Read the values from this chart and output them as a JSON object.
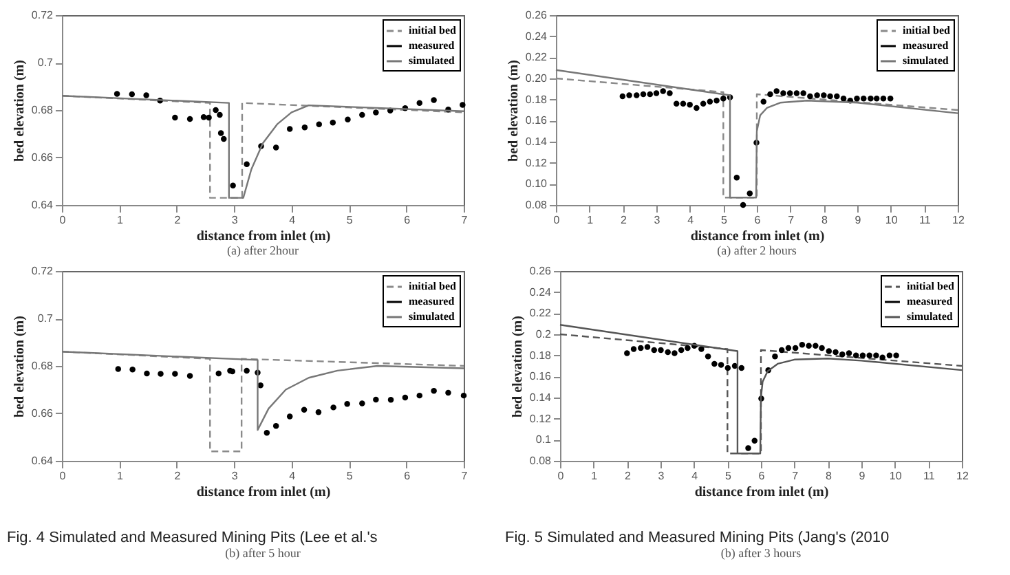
{
  "chart_data": [
    {
      "type": "line",
      "title": "(a) after 2hour",
      "xlabel": "distance from inlet (m)",
      "ylabel": "bed elevation (m)",
      "xlim": [
        0,
        7
      ],
      "ylim": [
        0.64,
        0.72
      ],
      "xticks": [
        0,
        1,
        2,
        3,
        4,
        5,
        6,
        7
      ],
      "yticks": [
        0.64,
        0.66,
        0.68,
        0.7,
        0.72
      ],
      "grid": false,
      "legend": "top right",
      "series": [
        {
          "name": "initial bed",
          "type": "line",
          "color": "#8a8a8a",
          "line_style": "dashed",
          "marker": "none",
          "x": [
            0,
            2.58,
            2.58,
            3.14,
            3.14,
            7
          ],
          "values": [
            0.686,
            0.683,
            0.643,
            0.643,
            0.683,
            0.679
          ]
        },
        {
          "name": "measured",
          "type": "scatter",
          "color": "#000000",
          "marker": "circle",
          "x": [
            0.96,
            1.22,
            1.47,
            1.71,
            1.97,
            2.23,
            2.47,
            2.56,
            2.68,
            2.75,
            2.77,
            2.82,
            2.98,
            3.22,
            3.47,
            3.73,
            3.97,
            4.23,
            4.48,
            4.72,
            4.98,
            5.23,
            5.47,
            5.72,
            5.98,
            6.23,
            6.48,
            6.73,
            6.98
          ],
          "values": [
            0.6868,
            0.6867,
            0.6862,
            0.684,
            0.6768,
            0.6762,
            0.677,
            0.6768,
            0.68,
            0.678,
            0.6703,
            0.6678,
            0.6482,
            0.6572,
            0.6648,
            0.6642,
            0.672,
            0.6727,
            0.674,
            0.6747,
            0.676,
            0.678,
            0.679,
            0.6798,
            0.6808,
            0.683,
            0.6842,
            0.6802,
            0.6822
          ]
        },
        {
          "name": "simulated",
          "type": "line",
          "color": "#777777",
          "line_style": "solid",
          "marker": "none",
          "x": [
            0,
            2.91,
            2.91,
            3.16,
            3.3,
            3.5,
            3.75,
            4.0,
            4.3,
            7
          ],
          "values": [
            0.686,
            0.683,
            0.643,
            0.643,
            0.655,
            0.666,
            0.674,
            0.679,
            0.682,
            0.6795
          ]
        }
      ]
    },
    {
      "type": "line",
      "title": "(a) after 2 hours",
      "xlabel": "distance from inlet (m)",
      "ylabel": "bed elevation (m)",
      "xlim": [
        0,
        12
      ],
      "ylim": [
        0.08,
        0.26
      ],
      "xticks": [
        0,
        1,
        2,
        3,
        4,
        5,
        6,
        7,
        8,
        9,
        10,
        11,
        12
      ],
      "yticks": [
        {
          "value": 0.08,
          "label": "0.08"
        },
        {
          "value": 0.1,
          "label": "0.10"
        },
        {
          "value": 0.12,
          "label": "0.12"
        },
        {
          "value": 0.14,
          "label": "0.14"
        },
        {
          "value": 0.16,
          "label": "0.16"
        },
        {
          "value": 0.18,
          "label": "0.18"
        },
        {
          "value": 0.2,
          "label": "0.20"
        },
        {
          "value": 0.22,
          "label": "0.22"
        },
        {
          "value": 0.24,
          "label": "0.24"
        },
        {
          "value": 0.26,
          "label": "0.26"
        }
      ],
      "grid": false,
      "legend": "top right",
      "series": [
        {
          "name": "initial bed",
          "type": "line",
          "color": "#8a8a8a",
          "line_style": "dashed",
          "marker": "none",
          "x": [
            0,
            5.0,
            5.0,
            6.0,
            6.0,
            12
          ],
          "values": [
            0.2,
            0.187,
            0.087,
            0.087,
            0.185,
            0.17
          ]
        },
        {
          "name": "measured",
          "type": "scatter",
          "color": "#000000",
          "marker": "circle",
          "x": [
            1.99,
            2.19,
            2.41,
            2.61,
            2.81,
            3.0,
            3.2,
            3.4,
            3.6,
            3.8,
            4.0,
            4.2,
            4.4,
            4.6,
            4.8,
            5.0,
            5.2,
            5.4,
            5.59,
            5.79,
            5.99,
            6.2,
            6.4,
            6.59,
            6.79,
            6.99,
            7.19,
            7.39,
            7.59,
            7.8,
            8.0,
            8.19,
            8.39,
            8.59,
            8.79,
            8.99,
            9.19,
            9.4,
            9.58,
            9.78,
            9.99
          ],
          "values": [
            0.183,
            0.184,
            0.184,
            0.185,
            0.185,
            0.186,
            0.188,
            0.186,
            0.176,
            0.176,
            0.175,
            0.172,
            0.176,
            0.178,
            0.179,
            0.181,
            0.182,
            0.106,
            0.08,
            0.091,
            0.139,
            0.178,
            0.185,
            0.188,
            0.186,
            0.186,
            0.186,
            0.186,
            0.183,
            0.184,
            0.184,
            0.183,
            0.183,
            0.181,
            0.179,
            0.181,
            0.181,
            0.181,
            0.181,
            0.181,
            0.181
          ]
        },
        {
          "name": "simulated",
          "type": "line",
          "color": "#777777",
          "line_style": "solid",
          "marker": "none",
          "x": [
            0,
            5.2,
            5.2,
            5.98,
            6.0,
            6.1,
            6.3,
            6.7,
            7.5,
            9,
            12
          ],
          "values": [
            0.208,
            0.184,
            0.087,
            0.087,
            0.15,
            0.165,
            0.172,
            0.177,
            0.179,
            0.177,
            0.167
          ]
        }
      ]
    },
    {
      "type": "line",
      "title": "(b) after 5 hour",
      "xlabel": "distance from inlet (m)",
      "ylabel": "bed elevation (m)",
      "xlim": [
        0,
        7
      ],
      "ylim": [
        0.64,
        0.72
      ],
      "xticks": [
        0,
        1,
        2,
        3,
        4,
        5,
        6,
        7
      ],
      "yticks": [
        0.64,
        0.66,
        0.68,
        0.7,
        0.72
      ],
      "grid": false,
      "legend": "top right",
      "annotations": [
        "Fig. 4 Simulated and Measured Mining Pits (Lee et al.'s"
      ],
      "series": [
        {
          "name": "initial bed",
          "type": "line",
          "color": "#8a8a8a",
          "line_style": "dashed",
          "marker": "none",
          "x": [
            0,
            2.58,
            2.58,
            3.13,
            3.13,
            7
          ],
          "values": [
            0.686,
            0.683,
            0.644,
            0.644,
            0.683,
            0.68
          ]
        },
        {
          "name": "measured",
          "type": "scatter",
          "color": "#000000",
          "marker": "circle",
          "x": [
            0.98,
            1.23,
            1.48,
            1.72,
            1.97,
            2.23,
            2.73,
            2.93,
            2.97,
            3.22,
            3.41,
            3.46,
            3.57,
            3.73,
            3.97,
            4.22,
            4.47,
            4.73,
            4.97,
            5.23,
            5.47,
            5.73,
            5.98,
            6.23,
            6.48,
            6.73,
            7.0
          ],
          "values": [
            0.6787,
            0.6785,
            0.6768,
            0.6767,
            0.6767,
            0.6758,
            0.6768,
            0.678,
            0.6777,
            0.678,
            0.6772,
            0.6718,
            0.6518,
            0.6547,
            0.6587,
            0.6615,
            0.6605,
            0.6625,
            0.664,
            0.6642,
            0.6658,
            0.6657,
            0.6667,
            0.6675,
            0.6695,
            0.6687,
            0.6675
          ]
        },
        {
          "name": "simulated",
          "type": "line",
          "color": "#777777",
          "line_style": "solid",
          "marker": "none",
          "x": [
            0,
            3.41,
            3.41,
            3.6,
            3.9,
            4.3,
            4.8,
            5.5,
            7
          ],
          "values": [
            0.686,
            0.6825,
            0.653,
            0.662,
            0.67,
            0.675,
            0.678,
            0.68,
            0.679
          ]
        }
      ]
    },
    {
      "type": "line",
      "title": "(b) after 3 hours",
      "xlabel": "distance from inlet (m)",
      "ylabel": "bed elevation (m)",
      "xlim": [
        0,
        12
      ],
      "ylim": [
        0.08,
        0.26
      ],
      "xticks": [
        0,
        1,
        2,
        3,
        4,
        5,
        6,
        7,
        8,
        9,
        10,
        11,
        12
      ],
      "yticks": [
        0.08,
        0.1,
        0.12,
        0.14,
        0.16,
        0.18,
        0.2,
        0.22,
        0.24,
        0.26
      ],
      "grid": false,
      "legend": "top right",
      "annotations": [
        "Fig. 5 Simulated and Measured Mining Pits (Jang's (2010"
      ],
      "series": [
        {
          "name": "initial bed",
          "type": "line",
          "color": "#555555",
          "line_style": "dashed",
          "marker": "none",
          "x": [
            0,
            5.0,
            5.0,
            6.0,
            6.0,
            12
          ],
          "values": [
            0.2,
            0.186,
            0.087,
            0.087,
            0.185,
            0.17
          ]
        },
        {
          "name": "measured",
          "type": "scatter",
          "color": "#000000",
          "marker": "circle",
          "x": [
            2.0,
            2.2,
            2.41,
            2.61,
            2.81,
            3.01,
            3.22,
            3.42,
            3.62,
            3.81,
            4.01,
            4.22,
            4.42,
            4.61,
            4.81,
            5.01,
            5.22,
            5.42,
            5.62,
            5.81,
            6.01,
            6.22,
            6.42,
            6.62,
            6.82,
            7.03,
            7.23,
            7.43,
            7.63,
            7.82,
            8.03,
            8.23,
            8.43,
            8.63,
            8.84,
            9.04,
            9.24,
            9.44,
            9.63,
            9.84,
            10.04
          ],
          "values": [
            0.182,
            0.186,
            0.187,
            0.188,
            0.185,
            0.185,
            0.183,
            0.182,
            0.185,
            0.187,
            0.189,
            0.186,
            0.179,
            0.172,
            0.171,
            0.168,
            0.17,
            0.168,
            0.092,
            0.099,
            0.139,
            0.166,
            0.179,
            0.185,
            0.187,
            0.187,
            0.19,
            0.189,
            0.189,
            0.187,
            0.184,
            0.183,
            0.181,
            0.182,
            0.18,
            0.18,
            0.18,
            0.18,
            0.178,
            0.18,
            0.18
          ]
        },
        {
          "name": "simulated",
          "type": "line",
          "color": "#555555",
          "line_style": "solid",
          "marker": "none",
          "x": [
            0,
            5.3,
            5.3,
            5.98,
            6.0,
            6.05,
            6.2,
            6.5,
            7,
            8,
            9,
            12
          ],
          "values": [
            0.209,
            0.184,
            0.087,
            0.087,
            0.14,
            0.155,
            0.165,
            0.172,
            0.176,
            0.177,
            0.175,
            0.166
          ]
        }
      ]
    }
  ]
}
